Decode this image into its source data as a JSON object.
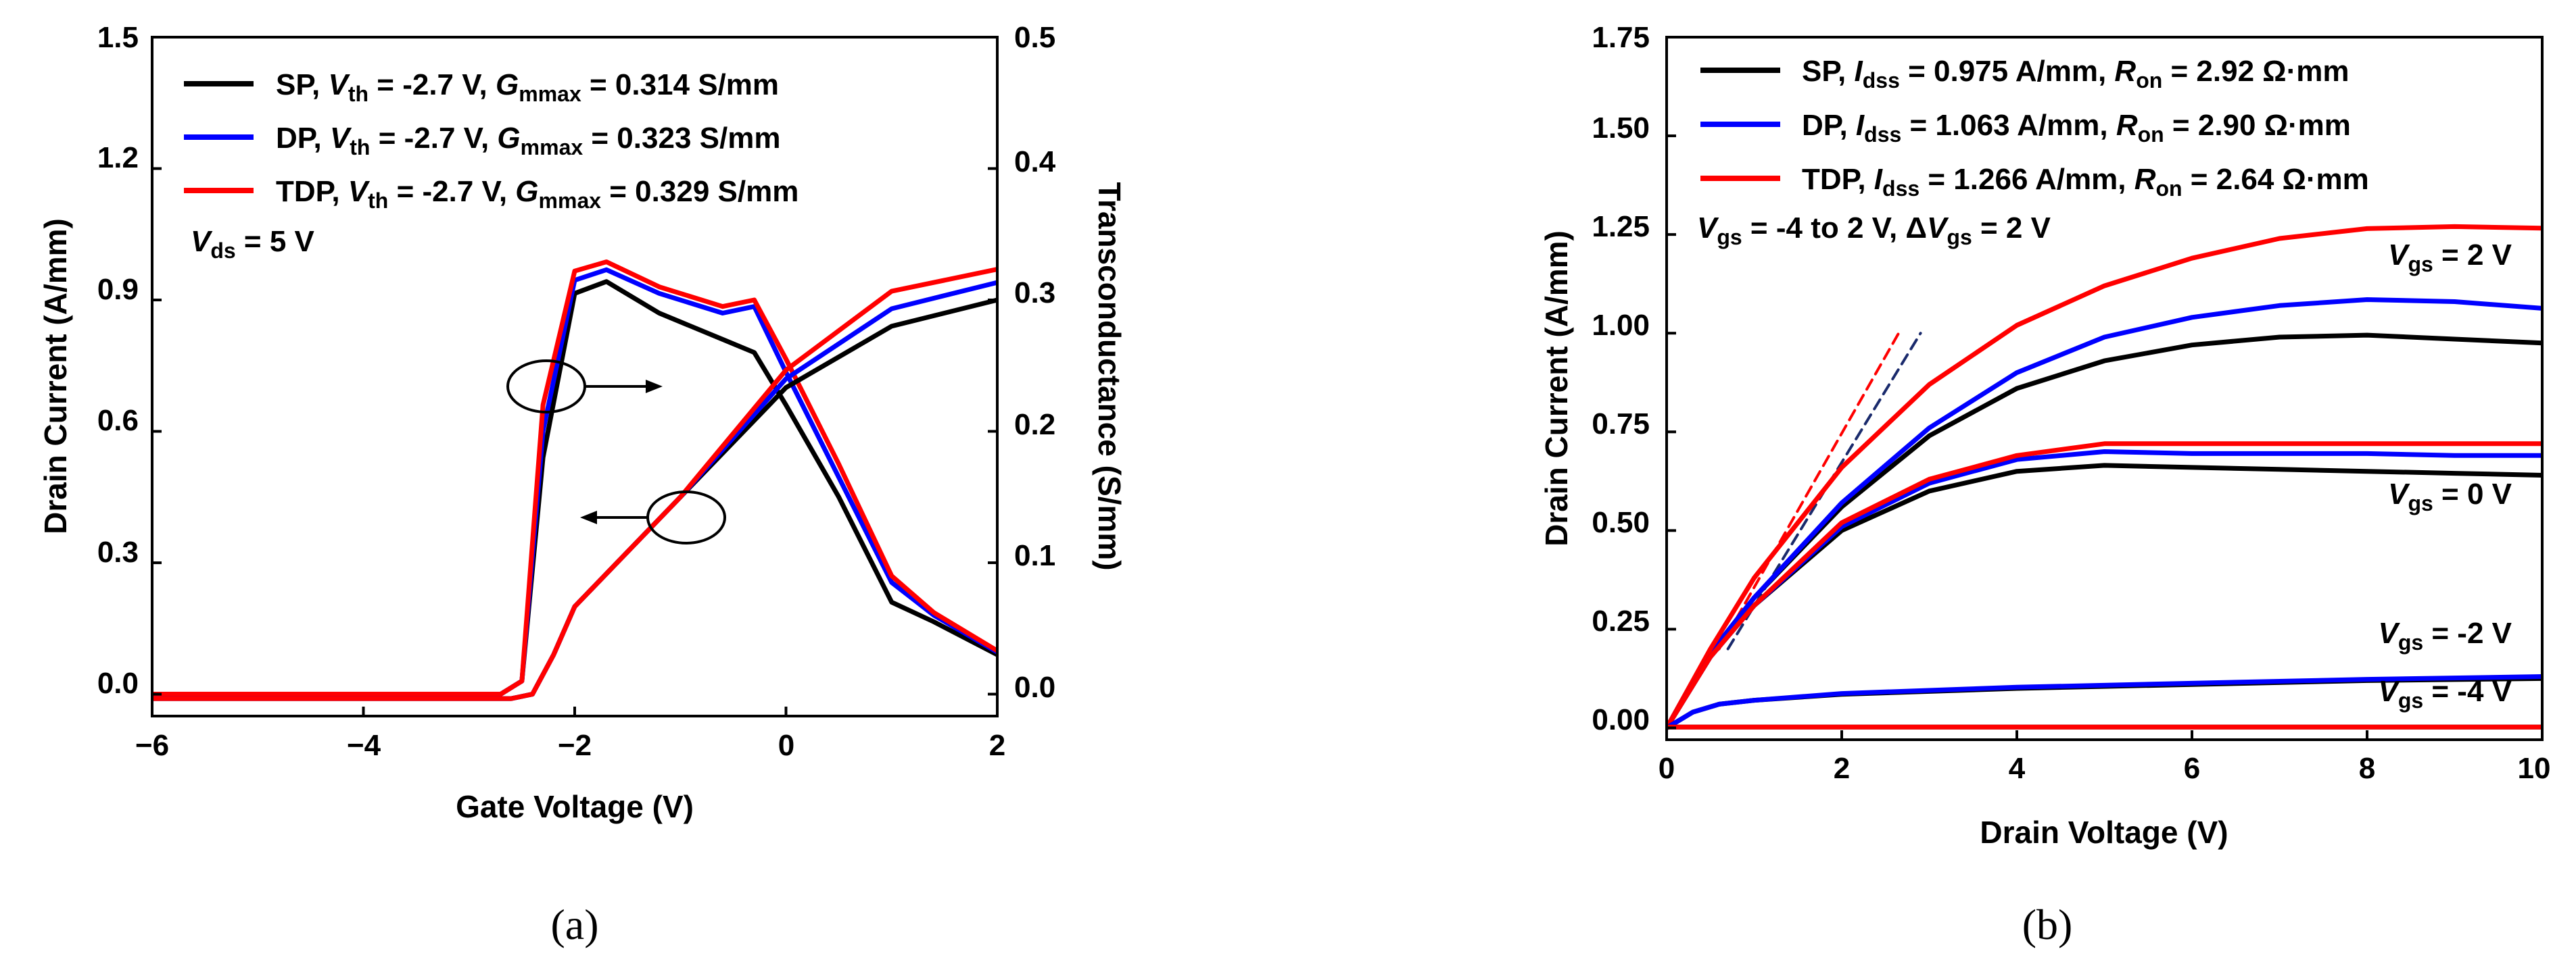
{
  "chart_data": [
    {
      "id": "a",
      "type": "line",
      "caption": "(a)",
      "xlabel": "Gate Voltage (V)",
      "ylabel": "Drain Current (A/mm)",
      "y2label": "Transconductance (S/mm)",
      "xlim": [
        -6,
        2
      ],
      "ylim": [
        -0.05,
        1.5
      ],
      "y2lim": [
        -0.0167,
        0.5
      ],
      "xticks": [
        "−6",
        "−4",
        "−2",
        "0",
        "2"
      ],
      "xtick_values": [
        -6,
        -4,
        -2,
        0,
        2
      ],
      "yticks": [
        "0.0",
        "0.3",
        "0.6",
        "0.9",
        "1.2",
        "1.5"
      ],
      "ytick_values": [
        0,
        0.3,
        0.6,
        0.9,
        1.2,
        1.5
      ],
      "y2ticks": [
        "0.0",
        "0.1",
        "0.2",
        "0.3",
        "0.4",
        "0.5"
      ],
      "y2tick_values": [
        0,
        0.1,
        0.2,
        0.3,
        0.4,
        0.5
      ],
      "legend": [
        {
          "name": "SP",
          "vth_label": "V",
          "vth_sub": "th",
          "vth_text": " = -2.7 V, ",
          "g_label": "G",
          "g_sub": "mmax",
          "g_text": " = 0.314 S/mm",
          "color": "#000000"
        },
        {
          "name": "DP",
          "vth_label": "V",
          "vth_sub": "th",
          "vth_text": " = -2.7 V, ",
          "g_label": "G",
          "g_sub": "mmax",
          "g_text": " = 0.323 S/mm",
          "color": "#0000ff"
        },
        {
          "name": "TDP",
          "vth_label": "V",
          "vth_sub": "th",
          "vth_text": " = -2.7 V, ",
          "g_label": "G",
          "g_sub": "mmax",
          "g_text": " = 0.329 S/mm",
          "color": "#ff0000"
        }
      ],
      "annotation": {
        "label": "V",
        "sub": "ds",
        "text": " = 5 V"
      },
      "series_current": [
        {
          "name": "SP",
          "color": "#000000",
          "x": [
            -6,
            -2.6,
            -2.4,
            -2.2,
            -2.0,
            -1.0,
            0.0,
            1.0,
            2.0
          ],
          "y": [
            -0.01,
            -0.01,
            0.0,
            0.09,
            0.2,
            0.45,
            0.7,
            0.84,
            0.9
          ]
        },
        {
          "name": "DP",
          "color": "#0000ff",
          "x": [
            -6,
            -2.6,
            -2.4,
            -2.2,
            -2.0,
            -1.0,
            0.0,
            1.0,
            2.0
          ],
          "y": [
            -0.01,
            -0.01,
            0.0,
            0.09,
            0.2,
            0.45,
            0.72,
            0.88,
            0.94
          ]
        },
        {
          "name": "TDP",
          "color": "#ff0000",
          "x": [
            -6,
            -2.6,
            -2.4,
            -2.2,
            -2.0,
            -1.0,
            0.0,
            1.0,
            2.0
          ],
          "y": [
            -0.01,
            -0.01,
            0.0,
            0.09,
            0.2,
            0.45,
            0.74,
            0.92,
            0.97
          ]
        }
      ],
      "series_gm": [
        {
          "name": "SP",
          "color": "#000000",
          "x": [
            -6,
            -2.7,
            -2.5,
            -2.3,
            -2.0,
            -1.7,
            -1.2,
            -0.6,
            -0.3,
            0.0,
            0.5,
            1.0,
            1.4,
            2.0
          ],
          "y": [
            0.0,
            0.0,
            0.01,
            0.18,
            0.305,
            0.314,
            0.29,
            0.27,
            0.26,
            0.22,
            0.15,
            0.07,
            0.055,
            0.03
          ]
        },
        {
          "name": "DP",
          "color": "#0000ff",
          "x": [
            -6,
            -2.7,
            -2.5,
            -2.3,
            -2.0,
            -1.7,
            -1.2,
            -0.6,
            -0.3,
            0.0,
            0.5,
            1.0,
            1.4,
            2.0
          ],
          "y": [
            0.0,
            0.0,
            0.01,
            0.2,
            0.315,
            0.323,
            0.305,
            0.29,
            0.295,
            0.245,
            0.165,
            0.085,
            0.06,
            0.032
          ]
        },
        {
          "name": "TDP",
          "color": "#ff0000",
          "x": [
            -6,
            -2.7,
            -2.5,
            -2.3,
            -2.0,
            -1.7,
            -1.2,
            -0.6,
            -0.3,
            0.0,
            0.5,
            1.0,
            1.4,
            2.0
          ],
          "y": [
            0.0,
            0.0,
            0.01,
            0.22,
            0.322,
            0.329,
            0.31,
            0.295,
            0.3,
            0.255,
            0.175,
            0.09,
            0.062,
            0.033
          ]
        }
      ]
    },
    {
      "id": "b",
      "type": "line",
      "caption": "(b)",
      "xlabel": "Drain Voltage (V)",
      "ylabel": "Drain Current (A/mm)",
      "xlim": [
        0,
        10
      ],
      "ylim": [
        -0.03,
        1.75
      ],
      "xticks": [
        "0",
        "2",
        "4",
        "6",
        "8",
        "10"
      ],
      "xtick_values": [
        0,
        2,
        4,
        6,
        8,
        10
      ],
      "yticks": [
        "0.00",
        "0.25",
        "0.50",
        "0.75",
        "1.00",
        "1.25",
        "1.50",
        "1.75"
      ],
      "ytick_values": [
        0,
        0.25,
        0.5,
        0.75,
        1.0,
        1.25,
        1.5,
        1.75
      ],
      "legend": [
        {
          "name": "SP",
          "i_label": "I",
          "i_sub": "dss",
          "i_text": " = 0.975 A/mm, ",
          "r_label": "R",
          "r_sub": "on",
          "r_text": " = 2.92 Ω·mm",
          "color": "#000000"
        },
        {
          "name": "DP",
          "i_label": "I",
          "i_sub": "dss",
          "i_text": " = 1.063 A/mm, ",
          "r_label": "R",
          "r_sub": "on",
          "r_text": " = 2.90 Ω·mm",
          "color": "#0000ff"
        },
        {
          "name": "TDP",
          "i_label": "I",
          "i_sub": "dss",
          "i_text": " = 1.266 A/mm, ",
          "r_label": "R",
          "r_sub": "on",
          "r_text": " = 2.64 Ω·mm",
          "color": "#ff0000"
        }
      ],
      "sweep_note": {
        "v1": "V",
        "v1sub": "gs",
        "t1": " = -4 to 2 V, Δ",
        "v2": "V",
        "v2sub": "gs",
        "t2": " = 2 V"
      },
      "curve_labels": [
        {
          "label": "V",
          "sub": "gs",
          "text": " = 2 V"
        },
        {
          "label": "V",
          "sub": "gs",
          "text": " = 0 V"
        },
        {
          "label": "V",
          "sub": "gs",
          "text": " = -2 V"
        },
        {
          "label": "V",
          "sub": "gs",
          "text": " = -4 V"
        }
      ],
      "series": [
        {
          "name": "SP Vgs=2V",
          "color": "#000000",
          "x": [
            0,
            0.5,
            1,
            2,
            3,
            4,
            5,
            6,
            7,
            8,
            9,
            10
          ],
          "y": [
            0,
            0.19,
            0.33,
            0.56,
            0.74,
            0.86,
            0.93,
            0.97,
            0.99,
            0.995,
            0.985,
            0.975
          ]
        },
        {
          "name": "DP Vgs=2V",
          "color": "#0000ff",
          "x": [
            0,
            0.5,
            1,
            2,
            3,
            4,
            5,
            6,
            7,
            8,
            9,
            10
          ],
          "y": [
            0,
            0.19,
            0.33,
            0.57,
            0.76,
            0.9,
            0.99,
            1.04,
            1.07,
            1.085,
            1.08,
            1.063
          ]
        },
        {
          "name": "TDP Vgs=2V",
          "color": "#ff0000",
          "x": [
            0,
            0.5,
            1,
            2,
            3,
            4,
            5,
            6,
            7,
            8,
            9,
            10
          ],
          "y": [
            0,
            0.2,
            0.38,
            0.66,
            0.87,
            1.02,
            1.12,
            1.19,
            1.24,
            1.265,
            1.27,
            1.266
          ]
        },
        {
          "name": "SP Vgs=0V",
          "color": "#000000",
          "x": [
            0,
            0.5,
            1,
            2,
            3,
            4,
            5,
            6,
            7,
            8,
            9,
            10
          ],
          "y": [
            0,
            0.18,
            0.31,
            0.5,
            0.6,
            0.65,
            0.665,
            0.66,
            0.655,
            0.65,
            0.645,
            0.64
          ]
        },
        {
          "name": "DP Vgs=0V",
          "color": "#0000ff",
          "x": [
            0,
            0.5,
            1,
            2,
            3,
            4,
            5,
            6,
            7,
            8,
            9,
            10
          ],
          "y": [
            0,
            0.18,
            0.31,
            0.51,
            0.62,
            0.68,
            0.7,
            0.695,
            0.695,
            0.695,
            0.69,
            0.69
          ]
        },
        {
          "name": "TDP Vgs=0V",
          "color": "#ff0000",
          "x": [
            0,
            0.5,
            1,
            2,
            3,
            4,
            5,
            6,
            7,
            8,
            9,
            10
          ],
          "y": [
            0,
            0.18,
            0.31,
            0.52,
            0.63,
            0.69,
            0.72,
            0.72,
            0.72,
            0.72,
            0.72,
            0.72
          ]
        },
        {
          "name": "SP Vgs=-2V",
          "color": "#000000",
          "x": [
            0,
            0.3,
            0.6,
            1,
            2,
            4,
            6,
            8,
            10
          ],
          "y": [
            0,
            0.04,
            0.06,
            0.07,
            0.085,
            0.1,
            0.11,
            0.12,
            0.125
          ]
        },
        {
          "name": "DP Vgs=-2V",
          "color": "#0000ff",
          "x": [
            0,
            0.3,
            0.6,
            1,
            2,
            4,
            6,
            8,
            10
          ],
          "y": [
            0,
            0.04,
            0.06,
            0.07,
            0.087,
            0.103,
            0.113,
            0.123,
            0.13
          ]
        },
        {
          "name": "SP Vgs=-4V",
          "color": "#000000",
          "x": [
            0,
            10
          ],
          "y": [
            0.002,
            0.002
          ]
        },
        {
          "name": "TDP Vgs=-4V",
          "color": "#ff0000",
          "x": [
            0,
            10
          ],
          "y": [
            0.002,
            0.002
          ]
        }
      ],
      "fit_lines": [
        {
          "name": "TDP Ron fit",
          "color": "#ff0000",
          "x": [
            0.6,
            2.65
          ],
          "y": [
            0.2,
            1.0
          ]
        },
        {
          "name": "SP Ron fit",
          "color": "#1a2a6c",
          "x": [
            0.7,
            2.9
          ],
          "y": [
            0.2,
            1.0
          ]
        }
      ]
    }
  ]
}
